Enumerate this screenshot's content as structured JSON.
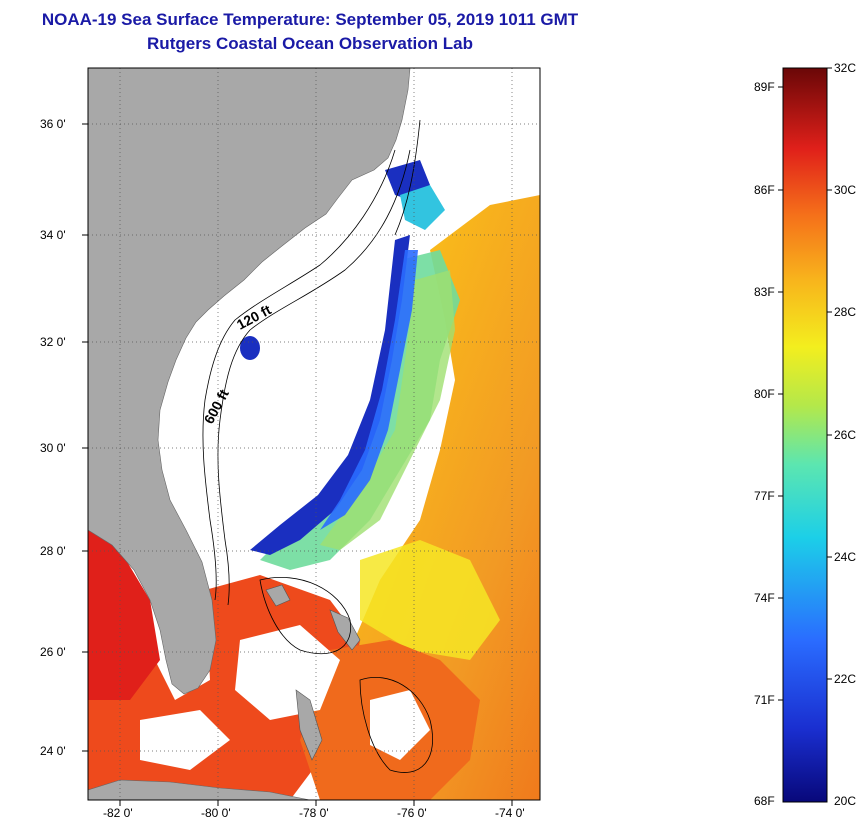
{
  "titles": {
    "line1": "NOAA-19 Sea Surface Temperature:  September 05, 2019 1011 GMT",
    "line2": "Rutgers Coastal Ocean Observation Lab"
  },
  "map": {
    "lat_labels": [
      "36 0'",
      "34 0'",
      "32 0'",
      "30 0'",
      "28 0'",
      "26 0'",
      "24 0'"
    ],
    "lon_labels": [
      "-82 0'",
      "-80 0'",
      "-78 0'",
      "-76 0'",
      "-74 0'"
    ],
    "contour_labels": [
      "120 ft",
      "600 ft"
    ]
  },
  "colorbar": {
    "fahrenheit_labels": [
      "89F",
      "86F",
      "83F",
      "80F",
      "77F",
      "74F",
      "71F",
      "68F"
    ],
    "celsius_labels": [
      "32C",
      "30C",
      "28C",
      "26C",
      "24C",
      "22C",
      "20C"
    ],
    "range_c": [
      20,
      32
    ]
  },
  "colors": {
    "title": "#1a1aa6",
    "land": "#a8a8a8",
    "no_data": "#ffffff"
  }
}
